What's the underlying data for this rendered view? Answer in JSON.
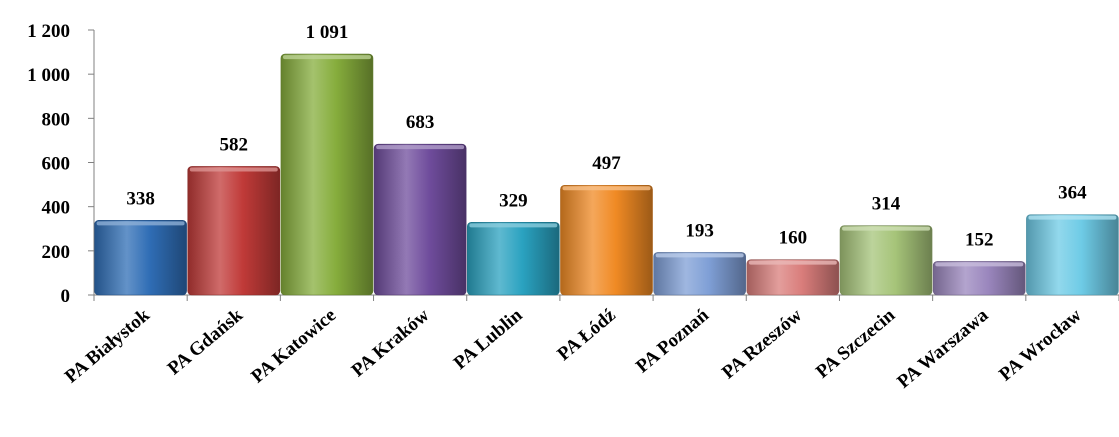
{
  "chart_data": {
    "type": "bar",
    "title": "",
    "xlabel": "",
    "ylabel": "",
    "ylim": [
      0,
      1200
    ],
    "yticks": [
      0,
      200,
      400,
      600,
      800,
      1000,
      1200
    ],
    "ytick_labels": [
      "0",
      "200",
      "400",
      "600",
      "800",
      "1 000",
      "1 200"
    ],
    "grid": false,
    "legend": "none",
    "categories": [
      "PA Białystok",
      "PA Gdańsk",
      "PA Katowice",
      "PA Kraków",
      "PA Lublin",
      "PA Łódź",
      "PA Poznań",
      "PA Rzeszów",
      "PA Szczecin",
      "PA Warszawa",
      "PA Wrocław"
    ],
    "values": [
      338,
      582,
      1091,
      683,
      329,
      497,
      193,
      160,
      314,
      152,
      364
    ],
    "data_labels": [
      "338",
      "582",
      "1 091",
      "683",
      "329",
      "497",
      "193",
      "160",
      "314",
      "152",
      "364"
    ],
    "colors": [
      "#2f6db5",
      "#c03a38",
      "#86ad3c",
      "#6f4c9c",
      "#2aa2c0",
      "#f08a24",
      "#7f9fd6",
      "#d97d7b",
      "#a6c479",
      "#9a86bd",
      "#6ecbe6"
    ]
  }
}
